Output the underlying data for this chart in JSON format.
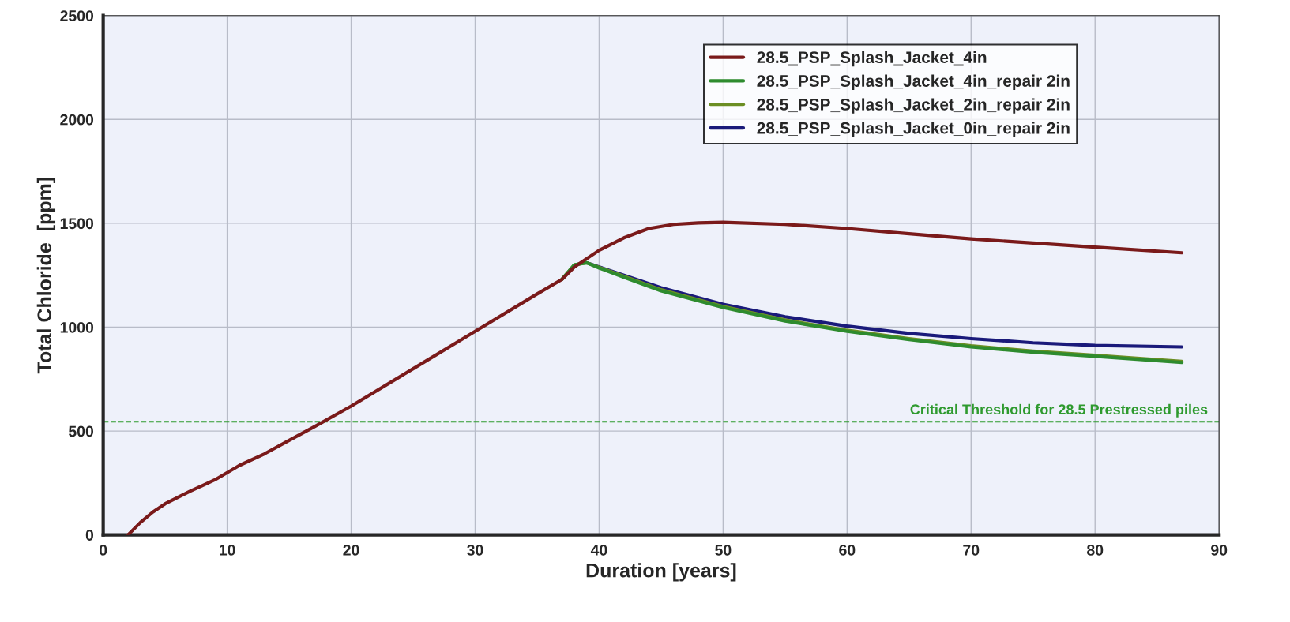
{
  "chart_data": {
    "type": "line",
    "xlabel": "Duration [years]",
    "ylabel": "Total Chloride  [ppm]",
    "xlim": [
      0,
      90
    ],
    "xticks": [
      0,
      10,
      20,
      30,
      40,
      50,
      60,
      70,
      80,
      90
    ],
    "ylim": [
      0,
      2500
    ],
    "yticks": [
      0,
      500,
      1000,
      1500,
      2000,
      2500
    ],
    "grid": true,
    "legend": "top right",
    "series": [
      {
        "name": "28.5_PSP_Splash_Jacket_4in",
        "color": "#7a1a1a",
        "x": [
          2,
          3,
          4,
          5,
          7,
          9,
          11,
          13,
          15,
          17,
          20,
          25,
          30,
          35,
          37,
          38,
          40,
          42,
          44,
          46,
          48,
          50,
          55,
          60,
          65,
          70,
          75,
          80,
          87
        ],
        "values": [
          0,
          60,
          110,
          150,
          210,
          265,
          335,
          390,
          455,
          520,
          620,
          800,
          980,
          1160,
          1230,
          1290,
          1370,
          1430,
          1475,
          1495,
          1502,
          1505,
          1495,
          1475,
          1450,
          1425,
          1405,
          1385,
          1358
        ]
      },
      {
        "name": "28.5_PSP_Splash_Jacket_4in_repair 2in",
        "color": "#2e8b2e",
        "x": [
          37,
          38,
          39,
          40,
          42,
          45,
          50,
          55,
          60,
          65,
          70,
          75,
          80,
          87
        ],
        "values": [
          1230,
          1300,
          1310,
          1285,
          1240,
          1175,
          1095,
          1030,
          980,
          940,
          905,
          880,
          860,
          830
        ]
      },
      {
        "name": "28.5_PSP_Splash_Jacket_2in_repair 2in",
        "color": "#6b8e23",
        "x": [
          37,
          38,
          39,
          40,
          42,
          45,
          50,
          55,
          60,
          65,
          70,
          75,
          80,
          87
        ],
        "values": [
          1230,
          1300,
          1310,
          1288,
          1245,
          1180,
          1100,
          1035,
          985,
          945,
          910,
          885,
          865,
          835
        ]
      },
      {
        "name": "28.5_PSP_Splash_Jacket_0in_repair 2in",
        "color": "#1a1a7a",
        "x": [
          39,
          40,
          42,
          45,
          50,
          55,
          60,
          65,
          70,
          75,
          80,
          87
        ],
        "values": [
          1310,
          1290,
          1250,
          1190,
          1110,
          1050,
          1005,
          970,
          945,
          925,
          912,
          905
        ]
      }
    ],
    "ref_lines": [
      {
        "axis": "y",
        "value": 545,
        "label": "Critical Threshold for 28.5 Prestressed piles",
        "color": "#2e9a2e",
        "line_style": "dashed"
      }
    ]
  }
}
